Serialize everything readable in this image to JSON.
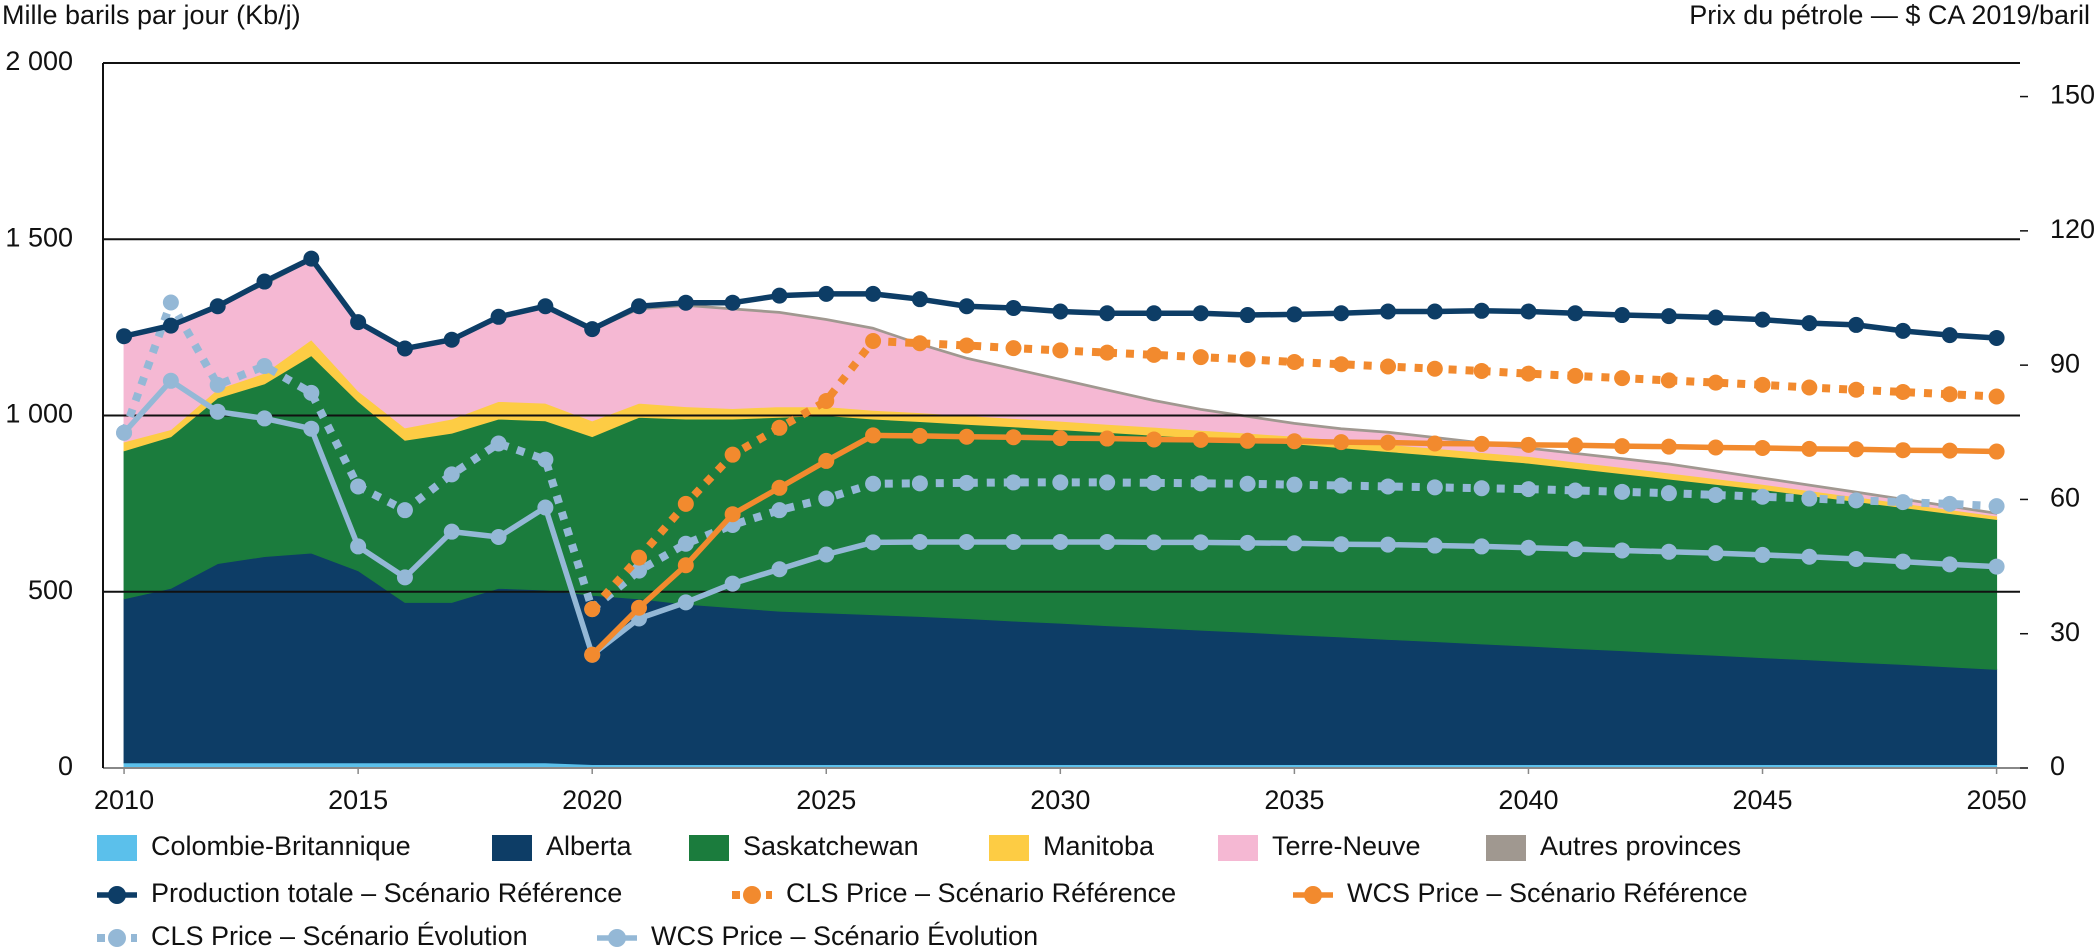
{
  "chart_data": {
    "type": "area",
    "y_label": "Mille barils par jour (Kb/j)",
    "y2_label": "Prix du pétrole — $ CA 2019/baril",
    "x": [
      2010,
      2011,
      2012,
      2013,
      2014,
      2015,
      2016,
      2017,
      2018,
      2019,
      2020,
      2021,
      2022,
      2023,
      2024,
      2025,
      2026,
      2027,
      2028,
      2029,
      2030,
      2031,
      2032,
      2033,
      2034,
      2035,
      2036,
      2037,
      2038,
      2039,
      2040,
      2041,
      2042,
      2043,
      2044,
      2045,
      2046,
      2047,
      2048,
      2049,
      2050
    ],
    "xlim": [
      2009.55,
      2050.5
    ],
    "xticks": [
      2010,
      2015,
      2020,
      2025,
      2030,
      2035,
      2040,
      2045,
      2050
    ],
    "ylim": [
      0,
      2000
    ],
    "yticks": [
      0,
      {
        "value": 500,
        "label": "500"
      },
      {
        "value": 1000,
        "label": "1 000"
      },
      {
        "value": 1500,
        "label": "1 500"
      },
      {
        "value": 2000,
        "label": "2 000"
      }
    ],
    "y2lim": [
      0,
      157.5
    ],
    "y2ticks": [
      0,
      30,
      60,
      90,
      120,
      150
    ],
    "grid": true,
    "stacked": true,
    "series": [
      {
        "name": "Colombie-Britannique",
        "type": "area",
        "color": "#5bc0eb",
        "values": [
          15,
          15,
          15,
          15,
          15,
          15,
          15,
          15,
          15,
          15,
          10,
          10,
          10,
          10,
          10,
          10,
          10,
          10,
          10,
          10,
          10,
          10,
          10,
          10,
          10,
          10,
          10,
          10,
          10,
          10,
          10,
          10,
          10,
          10,
          10,
          10,
          10,
          10,
          10,
          10,
          10
        ]
      },
      {
        "name": "Alberta",
        "type": "area",
        "color": "#0d3d66",
        "values": [
          465,
          495,
          565,
          585,
          595,
          545,
          455,
          455,
          495,
          490,
          480,
          470,
          455,
          445,
          435,
          430,
          425,
          420,
          414,
          407,
          401,
          394,
          388,
          381,
          375,
          368,
          362,
          355,
          349,
          342,
          336,
          329,
          323,
          316,
          310,
          303,
          297,
          290,
          284,
          277,
          270
        ]
      },
      {
        "name": "Saskatchewan",
        "type": "area",
        "color": "#1b7c3d",
        "values": [
          420,
          430,
          470,
          490,
          560,
          480,
          460,
          480,
          480,
          480,
          450,
          515,
          525,
          535,
          550,
          560,
          555,
          553,
          551,
          551,
          549,
          548,
          546,
          545,
          543,
          542,
          537,
          533,
          528,
          524,
          519,
          511,
          502,
          494,
          485,
          477,
          466,
          456,
          445,
          435,
          425
        ]
      },
      {
        "name": "Manitoba",
        "type": "area",
        "color": "#fdcc44",
        "values": [
          25,
          20,
          25,
          30,
          45,
          30,
          35,
          40,
          50,
          50,
          45,
          40,
          35,
          30,
          30,
          25,
          25,
          25,
          25,
          24,
          24,
          23,
          23,
          22,
          22,
          21,
          21,
          20,
          20,
          19,
          19,
          18,
          18,
          17,
          16,
          15,
          14,
          13,
          12,
          11,
          10
        ]
      },
      {
        "name": "Terre-Neuve",
        "type": "area",
        "color": "#f5b8d3",
        "values": [
          295,
          290,
          235,
          250,
          225,
          195,
          220,
          220,
          240,
          270,
          255,
          265,
          285,
          280,
          265,
          245,
          230,
          192,
          160,
          138,
          116,
          95,
          73,
          57,
          45,
          34,
          30,
          32,
          28,
          25,
          21,
          22,
          22,
          23,
          19,
          15,
          13,
          11,
          9,
          7,
          5
        ]
      },
      {
        "name": "Autres provinces",
        "type": "area",
        "color": "#a09890",
        "values": [
          0,
          0,
          0,
          0,
          0,
          0,
          0,
          0,
          0,
          0,
          0,
          0,
          5,
          5,
          5,
          5,
          5,
          5,
          5,
          5,
          5,
          5,
          5,
          5,
          5,
          5,
          5,
          5,
          5,
          5,
          5,
          5,
          5,
          5,
          5,
          5,
          5,
          5,
          5,
          5,
          5
        ]
      },
      {
        "name": "Production totale – Scénario Référence",
        "type": "line",
        "color": "#0d3d66",
        "values": [
          1225,
          1255,
          1310,
          1380,
          1445,
          1265,
          1190,
          1215,
          1280,
          1310,
          1245,
          1310,
          1320,
          1320,
          1340,
          1345,
          1345,
          1330,
          1310,
          1305,
          1295,
          1290,
          1290,
          1290,
          1285,
          1287,
          1290,
          1295,
          1295,
          1297,
          1295,
          1290,
          1285,
          1282,
          1278,
          1272,
          1262,
          1257,
          1240,
          1228,
          1220
        ]
      },
      {
        "name": "CLS Price – Scénario Référence",
        "type": "line",
        "axis": "y2",
        "dash": "dotted",
        "color": "#f28a2e",
        "values": [
          null,
          null,
          null,
          null,
          null,
          null,
          null,
          null,
          null,
          null,
          35.5,
          47,
          59,
          70,
          76,
          82,
          95.4,
          94.9,
          94.4,
          93.8,
          93.3,
          92.8,
          92.3,
          91.8,
          91.3,
          90.7,
          90.2,
          89.7,
          89.2,
          88.7,
          88.1,
          87.6,
          87.1,
          86.6,
          86.1,
          85.6,
          85.0,
          84.5,
          84.0,
          83.5,
          83.0
        ]
      },
      {
        "name": "WCS Price – Scénario Référence",
        "type": "line",
        "axis": "y2",
        "color": "#f28a2e",
        "values": [
          null,
          null,
          null,
          null,
          null,
          null,
          null,
          null,
          null,
          null,
          25.3,
          35.8,
          45.3,
          56.7,
          62.6,
          68.6,
          74.3,
          74.2,
          74.0,
          73.9,
          73.7,
          73.6,
          73.4,
          73.3,
          73.1,
          73.0,
          72.8,
          72.7,
          72.5,
          72.4,
          72.2,
          72.1,
          71.9,
          71.8,
          71.6,
          71.5,
          71.3,
          71.2,
          71.0,
          70.9,
          70.7
        ]
      },
      {
        "name": "CLS Price – Scénario Évolution",
        "type": "line",
        "axis": "y2",
        "dash": "dotted",
        "color": "#94b8d6",
        "values": [
          74.9,
          104,
          85.6,
          89.8,
          83.8,
          62.9,
          57.6,
          65.6,
          72.5,
          68.9,
          35.5,
          44.1,
          50.1,
          54.3,
          57.6,
          60.2,
          63.5,
          63.6,
          63.7,
          63.8,
          63.8,
          63.8,
          63.7,
          63.6,
          63.5,
          63.3,
          63.1,
          62.9,
          62.7,
          62.5,
          62.3,
          62.0,
          61.7,
          61.4,
          61.0,
          60.6,
          60.2,
          59.8,
          59.4,
          59.0,
          58.5
        ]
      },
      {
        "name": "WCS Price – Scénario Évolution",
        "type": "line",
        "axis": "y2",
        "color": "#94b8d6",
        "values": [
          74.9,
          86.5,
          79.6,
          78.1,
          75.8,
          49.5,
          42.6,
          52.8,
          51.6,
          58.2,
          25.3,
          33.4,
          37,
          41.2,
          44.4,
          47.7,
          50.4,
          50.5,
          50.5,
          50.5,
          50.5,
          50.5,
          50.4,
          50.4,
          50.3,
          50.2,
          50.0,
          49.9,
          49.7,
          49.5,
          49.2,
          48.9,
          48.6,
          48.3,
          48.0,
          47.6,
          47.2,
          46.7,
          46.1,
          45.5,
          45.0
        ]
      }
    ]
  }
}
